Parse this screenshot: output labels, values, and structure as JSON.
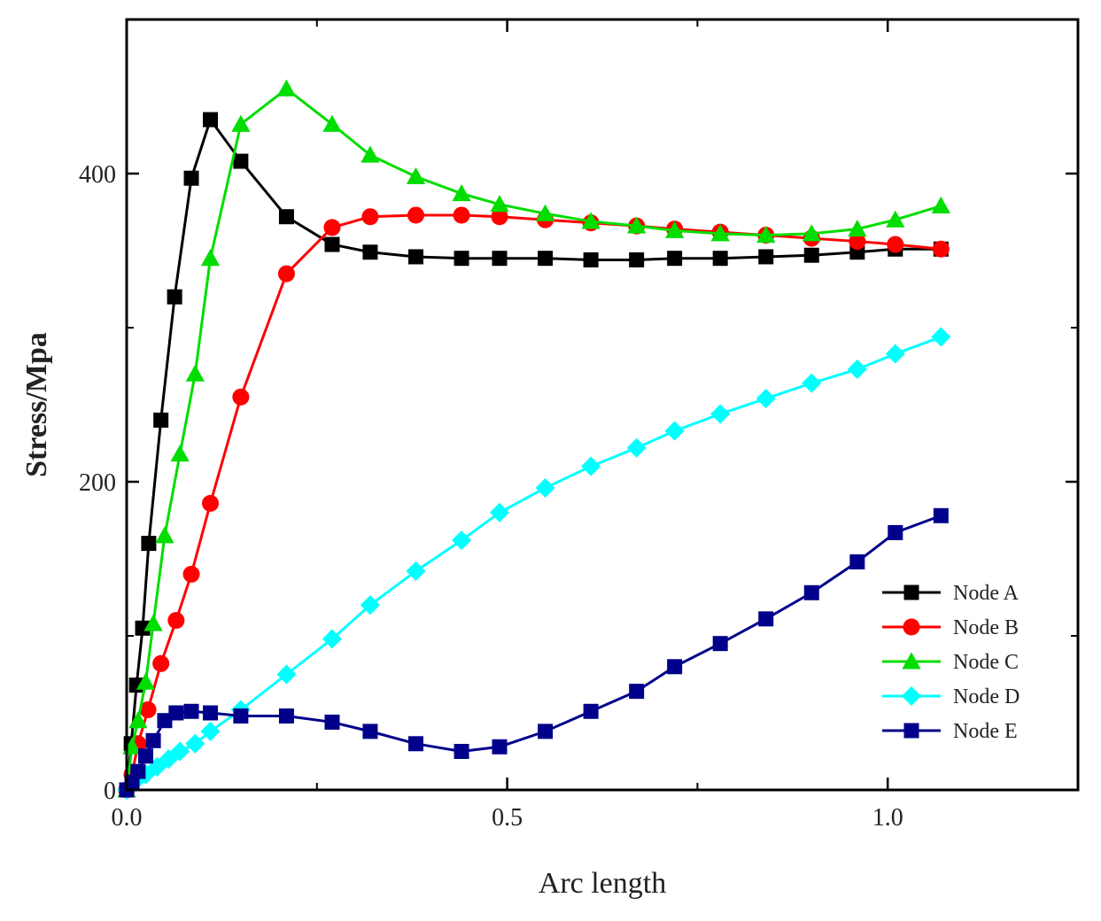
{
  "chart_data": {
    "type": "line",
    "title": "",
    "xlabel": "Arc length",
    "ylabel": "Stress/Mpa",
    "xlim": [
      0.0,
      1.25
    ],
    "ylim": [
      0,
      500
    ],
    "x_ticks": [
      0.0,
      0.5,
      1.0
    ],
    "x_tick_labels": [
      "0.0",
      "0.5",
      "1.0"
    ],
    "x_minor_ticks": [
      0.25,
      0.75
    ],
    "y_ticks": [
      0,
      200,
      400
    ],
    "y_tick_labels": [
      "0",
      "200",
      "400"
    ],
    "y_minor_ticks": [
      100,
      300
    ],
    "grid": false,
    "legend_position": "bottom-right",
    "series": [
      {
        "name": "Node A",
        "color": "#000000",
        "marker": "square",
        "x": [
          0.0,
          0.006,
          0.013,
          0.021,
          0.029,
          0.045,
          0.063,
          0.085,
          0.11,
          0.15,
          0.21,
          0.27,
          0.32,
          0.38,
          0.44,
          0.49,
          0.55,
          0.61,
          0.67,
          0.72,
          0.78,
          0.84,
          0.9,
          0.96,
          1.01,
          1.07
        ],
        "y": [
          0,
          30,
          68,
          105,
          160,
          240,
          320,
          397,
          435,
          408,
          372,
          354,
          349,
          346,
          345,
          345,
          345,
          344,
          344,
          345,
          345,
          346,
          347,
          349,
          351,
          351
        ]
      },
      {
        "name": "Node B",
        "color": "#ff0000",
        "marker": "circle",
        "x": [
          0.0,
          0.007,
          0.015,
          0.028,
          0.045,
          0.065,
          0.085,
          0.11,
          0.15,
          0.21,
          0.27,
          0.32,
          0.38,
          0.44,
          0.49,
          0.55,
          0.61,
          0.67,
          0.72,
          0.78,
          0.84,
          0.9,
          0.96,
          1.01,
          1.07
        ],
        "y": [
          0,
          10,
          30,
          52,
          82,
          110,
          140,
          186,
          255,
          335,
          365,
          372,
          373,
          373,
          372,
          370,
          368,
          366,
          364,
          362,
          360,
          358,
          356,
          354,
          351
        ]
      },
      {
        "name": "Node C",
        "color": "#00dd00",
        "marker": "triangle",
        "x": [
          0.0,
          0.007,
          0.015,
          0.025,
          0.035,
          0.05,
          0.07,
          0.09,
          0.11,
          0.15,
          0.21,
          0.27,
          0.32,
          0.38,
          0.44,
          0.49,
          0.55,
          0.61,
          0.67,
          0.72,
          0.78,
          0.84,
          0.9,
          0.96,
          1.01,
          1.07
        ],
        "y": [
          0,
          28,
          45,
          70,
          108,
          165,
          218,
          270,
          345,
          432,
          455,
          432,
          412,
          398,
          387,
          380,
          374,
          369,
          366,
          363,
          361,
          360,
          361,
          364,
          370,
          379
        ]
      },
      {
        "name": "Node D",
        "color": "#00ffff",
        "marker": "diamond",
        "x": [
          0.0,
          0.01,
          0.025,
          0.04,
          0.055,
          0.07,
          0.09,
          0.11,
          0.15,
          0.21,
          0.27,
          0.32,
          0.38,
          0.44,
          0.49,
          0.55,
          0.61,
          0.67,
          0.72,
          0.78,
          0.84,
          0.9,
          0.96,
          1.01,
          1.07
        ],
        "y": [
          0,
          5,
          10,
          15,
          20,
          25,
          30,
          38,
          52,
          75,
          98,
          120,
          142,
          162,
          180,
          196,
          210,
          222,
          233,
          244,
          254,
          264,
          273,
          283,
          294
        ]
      },
      {
        "name": "Node E",
        "color": "#00008b",
        "marker": "square",
        "x": [
          0.0,
          0.007,
          0.015,
          0.025,
          0.035,
          0.05,
          0.065,
          0.085,
          0.11,
          0.15,
          0.21,
          0.27,
          0.32,
          0.38,
          0.44,
          0.49,
          0.55,
          0.61,
          0.67,
          0.72,
          0.78,
          0.84,
          0.9,
          0.96,
          1.01,
          1.07
        ],
        "y": [
          0,
          5,
          12,
          22,
          32,
          45,
          50,
          51,
          50,
          48,
          48,
          44,
          38,
          30,
          25,
          28,
          38,
          51,
          64,
          80,
          95,
          111,
          128,
          148,
          167,
          178
        ]
      }
    ]
  }
}
